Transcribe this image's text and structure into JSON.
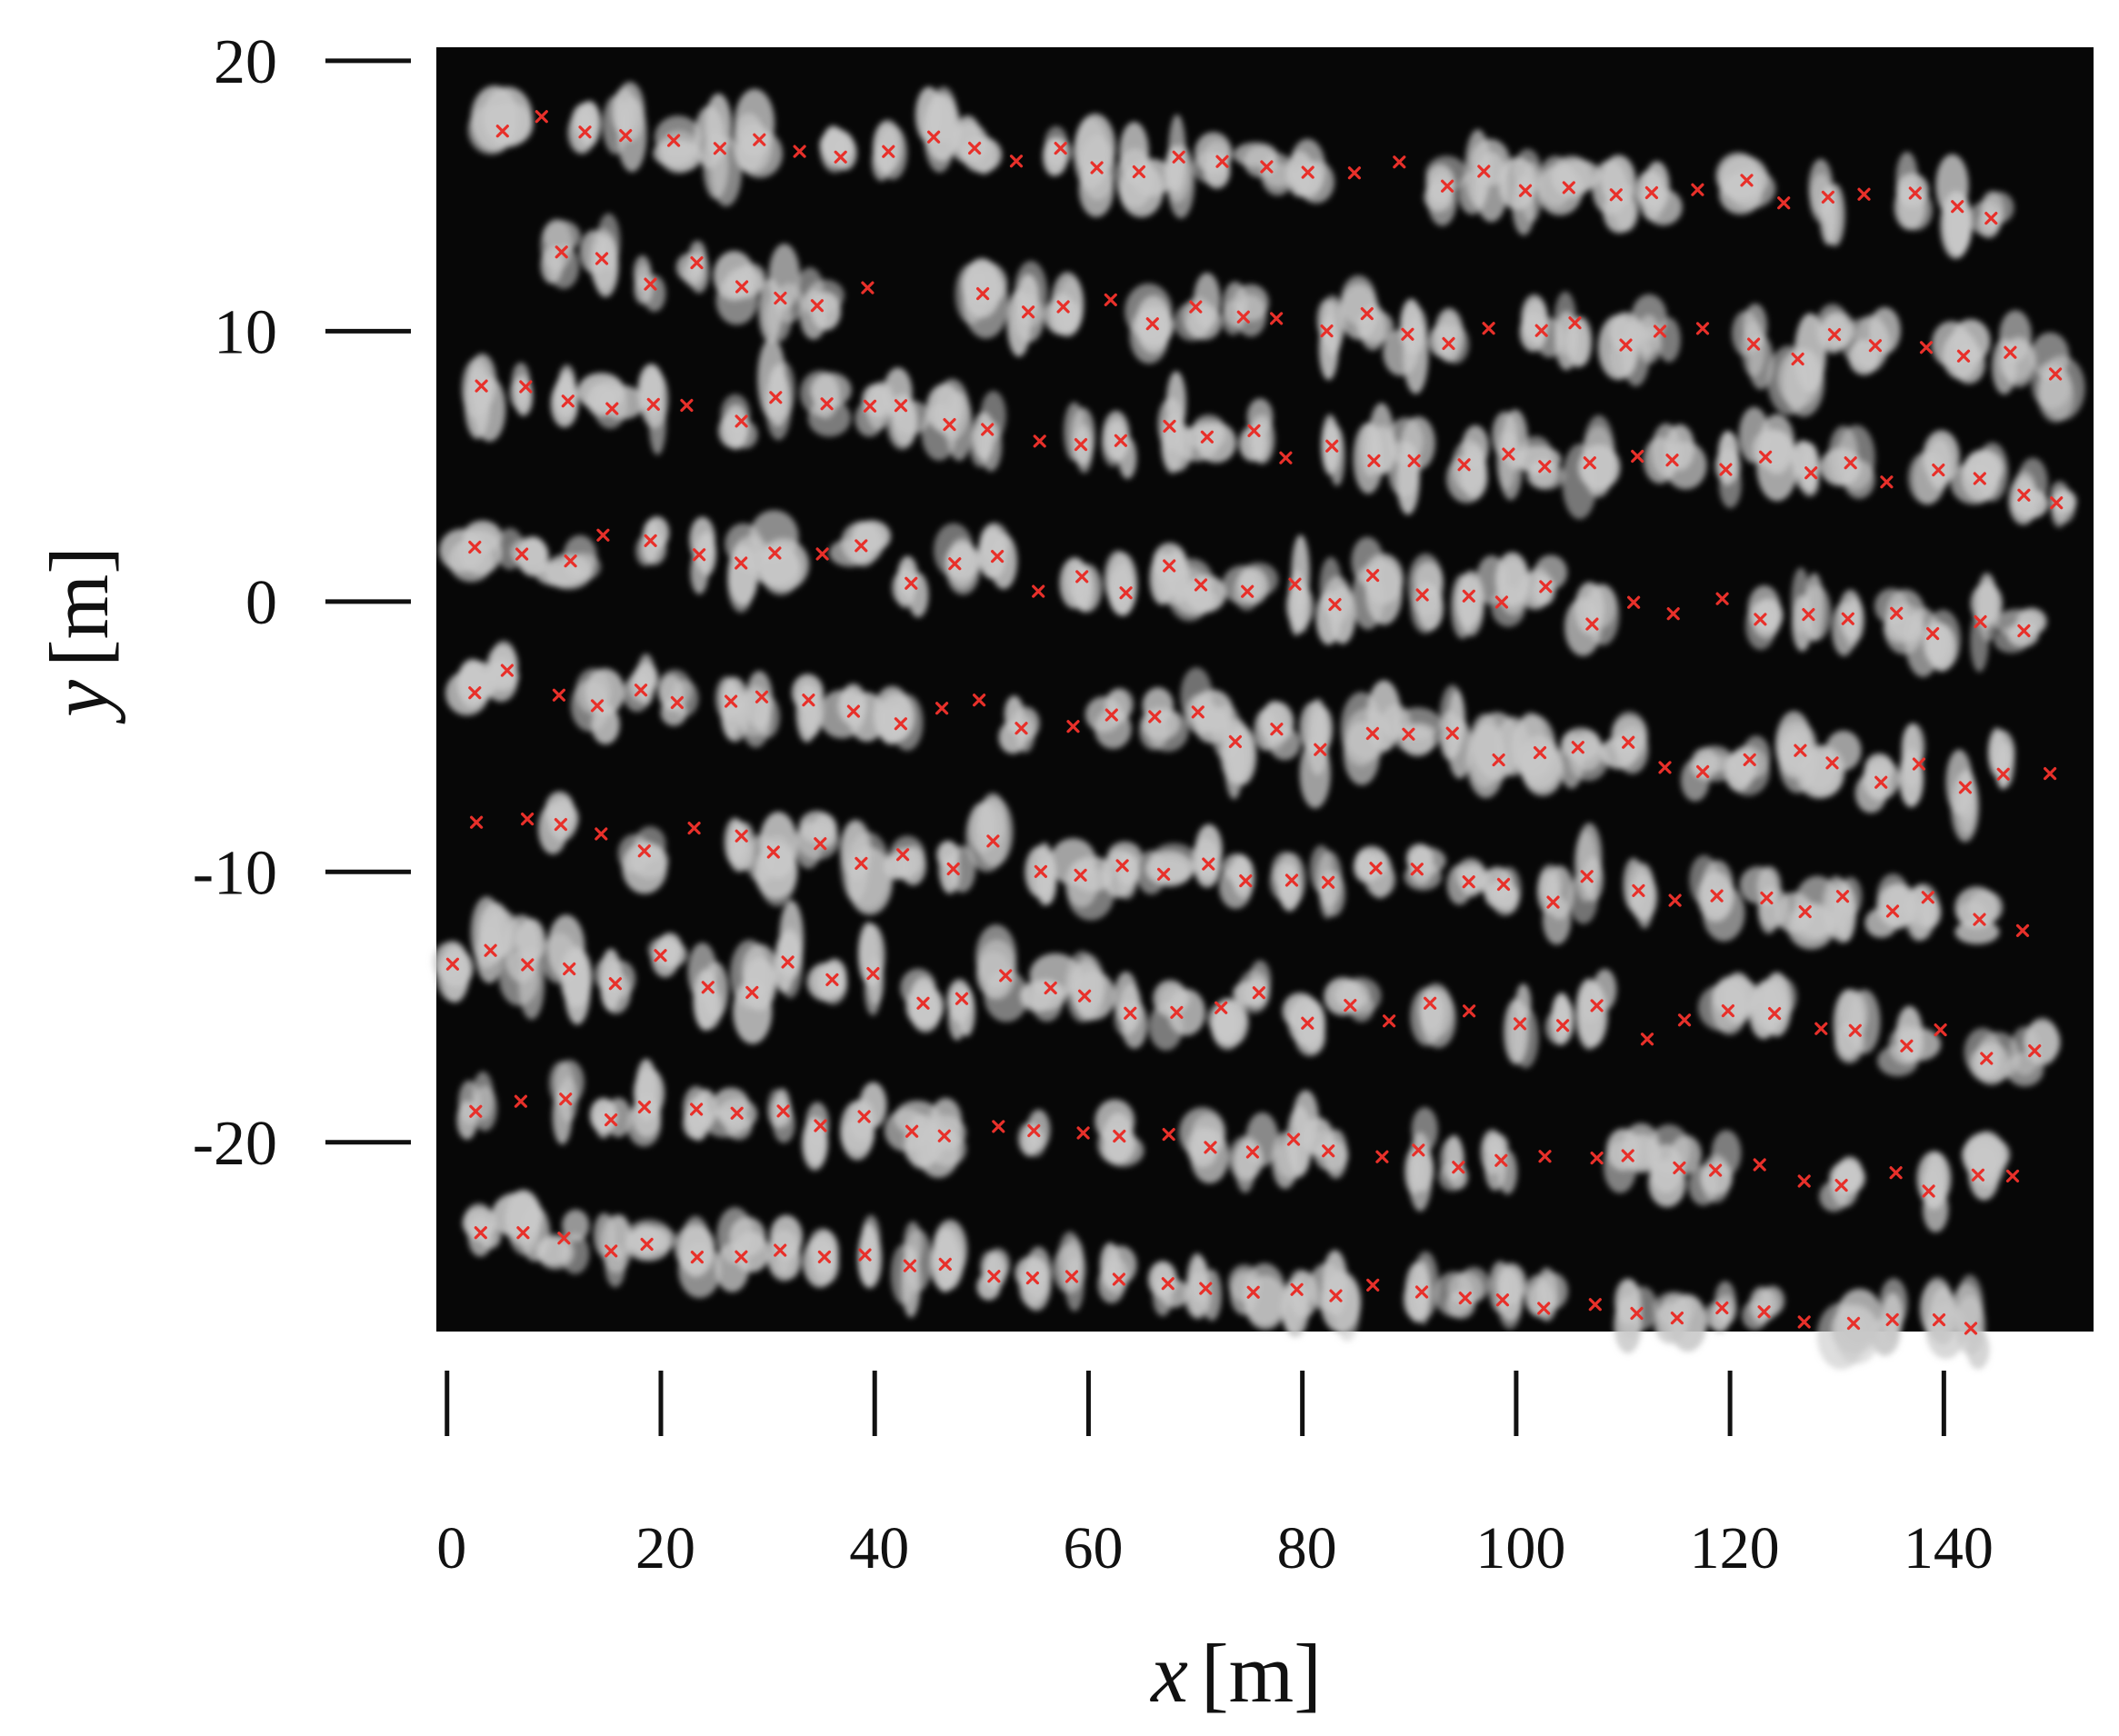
{
  "chart_data": {
    "type": "scatter",
    "title": "",
    "xlabel": "x",
    "ylabel": "y",
    "unit": "[m]",
    "xlim": [
      -1,
      154
    ],
    "ylim": [
      -27,
      20.5
    ],
    "x_ticks": [
      0,
      20,
      40,
      60,
      80,
      100,
      120,
      140
    ],
    "y_ticks": [
      20,
      10,
      0,
      -10,
      -20
    ],
    "background": "#070707",
    "marker_color": "#e8302a",
    "blob_color": "#c8c8c8",
    "grid": false,
    "legend": "none",
    "rows": [
      {
        "y": 17.6,
        "x_start": 5,
        "x_end": 148,
        "drift": -3.0,
        "jitter": 0.5
      },
      {
        "y": 12.8,
        "x_start": 11,
        "x_end": 40,
        "drift": -1.8,
        "jitter": 0.6
      },
      {
        "y": 10.9,
        "x_start": 50,
        "x_end": 152,
        "drift": -2.0,
        "jitter": 0.6
      },
      {
        "y": 7.8,
        "x_start": 3,
        "x_end": 153,
        "drift": -3.8,
        "jitter": 0.6
      },
      {
        "y": 2.2,
        "x_start": 3,
        "x_end": 150,
        "drift": -3.3,
        "jitter": 0.7
      },
      {
        "y": -3.0,
        "x_start": 2,
        "x_end": 150,
        "drift": -3.6,
        "jitter": 0.6
      },
      {
        "y": -8.3,
        "x_start": 3,
        "x_end": 150,
        "drift": -3.4,
        "jitter": 0.6
      },
      {
        "y": -13.2,
        "x_start": 0,
        "x_end": 150,
        "drift": -3.3,
        "jitter": 0.7
      },
      {
        "y": -18.6,
        "x_start": 3,
        "x_end": 150,
        "drift": -3.1,
        "jitter": 0.4
      },
      {
        "y": -23.5,
        "x_start": 3,
        "x_end": 146,
        "drift": -3.5,
        "jitter": 0.3
      }
    ],
    "spacing_m": 4.0
  }
}
